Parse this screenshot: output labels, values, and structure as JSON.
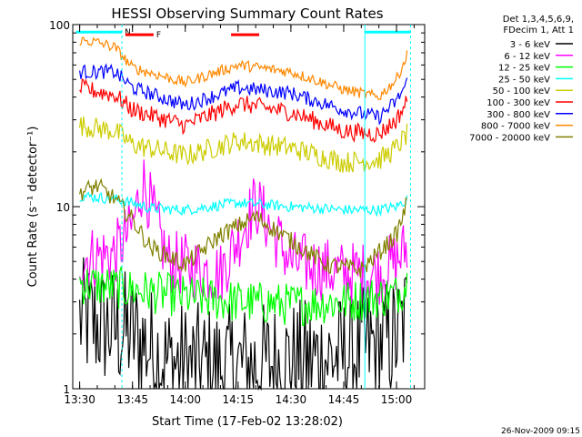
{
  "chart_data": {
    "type": "line",
    "title": "HESSI Observing Summary Count Rates",
    "xlabel": "Start Time (17-Feb-02 13:28:02)",
    "ylabel": "Count Rate (s⁻¹ detector⁻¹)",
    "y_scale": "log",
    "ylim": [
      1,
      100
    ],
    "x_start": "13:28:02",
    "x_end": "15:08",
    "x_ticks": [
      "13:30",
      "13:45",
      "14:00",
      "14:15",
      "14:30",
      "14:45",
      "15:00"
    ],
    "y_ticks": [
      "1",
      "10",
      "100"
    ],
    "timestamp": "26-Nov-2009 09:15",
    "legend_header": [
      "Det 1,3,4,5,6,9,",
      "FDecim 1, Att 1"
    ],
    "legend_position": "right",
    "series": [
      {
        "name": "3 - 6 keV",
        "color": "#000000",
        "x": [
          "13:30",
          "13:45",
          "13:55",
          "14:10",
          "14:30",
          "14:45",
          "15:00",
          "15:03"
        ],
        "y": [
          2.4,
          2.0,
          1.4,
          1.3,
          1.4,
          1.5,
          1.9,
          2.5
        ]
      },
      {
        "name": "6 - 12 keV",
        "color": "#ff00ff",
        "x": [
          "13:30",
          "13:40",
          "13:45",
          "13:48",
          "13:55",
          "14:10",
          "14:20",
          "14:30",
          "14:45",
          "14:55",
          "15:00",
          "15:03"
        ],
        "y": [
          5.2,
          5.5,
          7.8,
          14.0,
          5.0,
          4.3,
          10.5,
          5.0,
          4.3,
          4.3,
          5.0,
          6.0
        ]
      },
      {
        "name": "12 - 25 keV",
        "color": "#00ff00",
        "x": [
          "13:30",
          "13:45",
          "14:00",
          "14:15",
          "14:30",
          "14:45",
          "15:00",
          "15:03"
        ],
        "y": [
          3.8,
          3.5,
          3.2,
          3.0,
          2.9,
          3.0,
          3.3,
          3.8
        ]
      },
      {
        "name": "25 - 50 keV",
        "color": "#00ffff",
        "x": [
          "13:30",
          "13:40",
          "13:45",
          "13:50",
          "14:00",
          "14:15",
          "14:30",
          "14:45",
          "14:55",
          "15:00",
          "15:03"
        ],
        "y": [
          11.5,
          11.0,
          10.5,
          9.8,
          9.6,
          10.5,
          10.0,
          9.6,
          9.6,
          10.0,
          11.0
        ]
      },
      {
        "name": "50 - 100 keV",
        "color": "#cccc00",
        "x": [
          "13:30",
          "13:40",
          "13:45",
          "14:00",
          "14:15",
          "14:30",
          "14:45",
          "14:55",
          "15:00",
          "15:03"
        ],
        "y": [
          28.0,
          26.0,
          22.0,
          19.0,
          23.0,
          21.0,
          17.5,
          18.0,
          21.0,
          25.0
        ]
      },
      {
        "name": "100 - 300 keV",
        "color": "#ff0000",
        "x": [
          "13:30",
          "13:40",
          "13:45",
          "14:00",
          "14:15",
          "14:30",
          "14:45",
          "14:55",
          "15:00",
          "15:03"
        ],
        "y": [
          45.0,
          41.0,
          34.0,
          28.0,
          37.0,
          33.0,
          26.0,
          25.0,
          30.0,
          38.0
        ]
      },
      {
        "name": "300 - 800 keV",
        "color": "#0000ff",
        "x": [
          "13:30",
          "13:40",
          "13:45",
          "14:00",
          "14:15",
          "14:30",
          "14:45",
          "14:55",
          "15:00",
          "15:03"
        ],
        "y": [
          55.0,
          55.0,
          45.0,
          36.0,
          45.0,
          42.0,
          34.0,
          31.0,
          38.0,
          48.0
        ]
      },
      {
        "name": "800 - 7000 keV",
        "color": "#ff8800",
        "x": [
          "13:30",
          "13:35",
          "13:40",
          "13:45",
          "14:00",
          "14:15",
          "14:30",
          "14:45",
          "14:55",
          "15:00",
          "15:03"
        ],
        "y": [
          82.0,
          80.0,
          75.0,
          58.0,
          48.0,
          60.0,
          55.0,
          44.0,
          40.0,
          50.0,
          68.0
        ]
      },
      {
        "name": "7000 - 20000 keV",
        "color": "#808000",
        "x": [
          "13:30",
          "13:35",
          "13:40",
          "13:45",
          "13:50",
          "14:00",
          "14:10",
          "14:20",
          "14:30",
          "14:40",
          "14:50",
          "15:00",
          "15:03"
        ],
        "y": [
          12.0,
          13.0,
          11.0,
          8.5,
          6.0,
          4.8,
          7.0,
          8.8,
          6.5,
          4.8,
          4.5,
          7.0,
          10.5
        ]
      }
    ],
    "flag_bars": [
      {
        "label": "N",
        "color": "#00ffff",
        "x": [
          "13:29",
          "13:42"
        ],
        "y": 91
      },
      {
        "label": "F",
        "color": "#ff0000",
        "x": [
          "13:43",
          "13:51"
        ],
        "y": 88
      },
      {
        "color": "#ff0000",
        "x": [
          "14:13",
          "14:21"
        ],
        "y": 88
      },
      {
        "color": "#00ffff",
        "x": [
          "14:51",
          "15:04"
        ],
        "y": 91
      }
    ],
    "vlines": [
      {
        "x": "13:42",
        "color": "#00ffff",
        "style": "dashed"
      },
      {
        "x": "14:51",
        "color": "#00ffff",
        "style": "solid"
      },
      {
        "x": "15:04",
        "color": "#00ffff",
        "style": "dashed"
      }
    ]
  }
}
